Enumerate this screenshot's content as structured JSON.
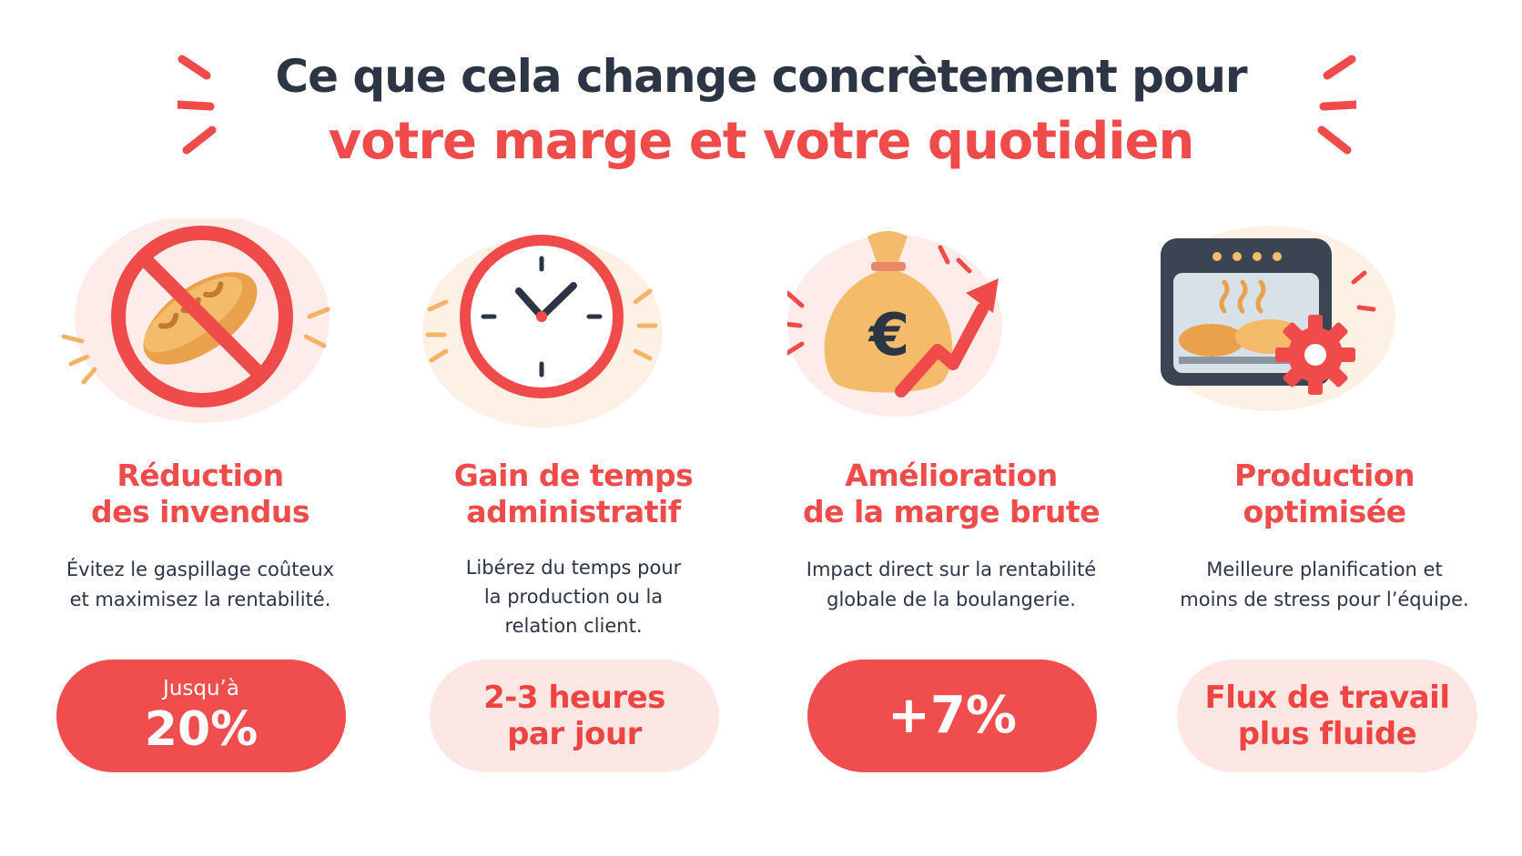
{
  "header": {
    "title_line1": "Ce que cela change concrètement pour",
    "title_line2": "votre marge et votre quotidien"
  },
  "colors": {
    "accent": "#ef4b4b",
    "dark": "#2b3543",
    "soft_pill": "#fde7e4"
  },
  "cards": [
    {
      "icon": "no-bread-icon",
      "title_line1": "Réduction",
      "title_line2": "des invendus",
      "desc_lines": [
        "Évitez le gaspillage coûteux",
        "et maximisez la rentabilité."
      ],
      "pill_style": "solid",
      "pill_small": "Jusqu’à",
      "pill_big": "20%"
    },
    {
      "icon": "clock-icon",
      "title_line1": "Gain de temps",
      "title_line2": "administratif",
      "desc_lines": [
        "Libérez du temps pour",
        "la production ou la",
        "relation client."
      ],
      "pill_style": "soft",
      "pill_line1": "2-3 heures",
      "pill_line2": "par jour"
    },
    {
      "icon": "money-bag-growth-icon",
      "title_line1": "Amélioration",
      "title_line2": "de la marge brute",
      "desc_lines": [
        "Impact direct sur la rentabilité",
        "globale de la boulangerie."
      ],
      "pill_style": "solid",
      "pill_big": "+7%"
    },
    {
      "icon": "oven-gear-icon",
      "title_line1": "Production",
      "title_line2": "optimisée",
      "desc_lines": [
        "Meilleure planification et",
        "moins de stress pour l’équipe."
      ],
      "pill_style": "soft",
      "pill_line1": "Flux de travail",
      "pill_line2": "plus fluide"
    }
  ]
}
